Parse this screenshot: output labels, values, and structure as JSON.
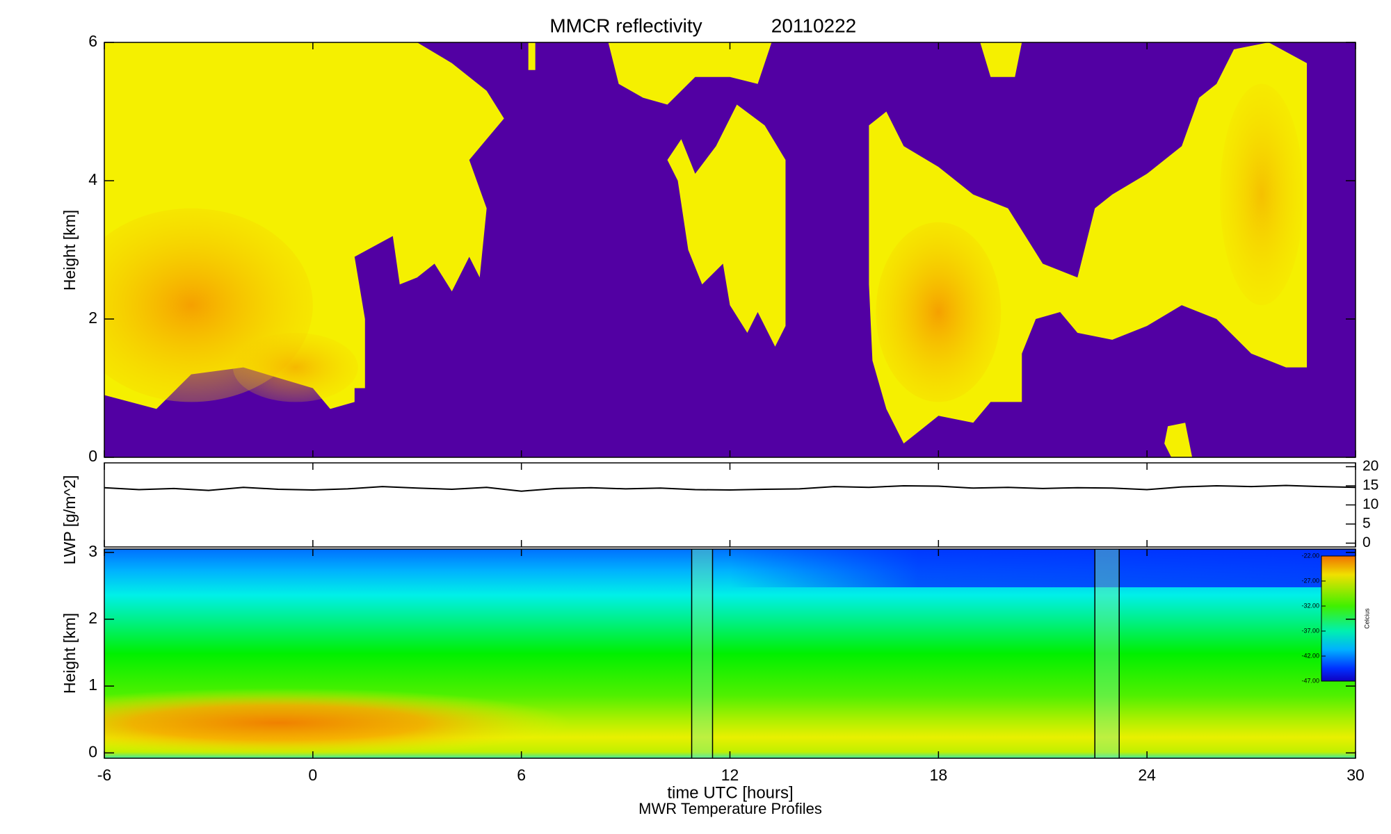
{
  "chart_data": [
    {
      "type": "heatmap",
      "title": "MMCR reflectivity",
      "date": "20110222",
      "ylabel": "Height [km]",
      "ylim": [
        0,
        6
      ],
      "yticks": [
        0,
        2,
        4,
        6
      ],
      "background": "#5200a3"
    },
    {
      "type": "line",
      "ylabel": "LWP [g/m^2]",
      "y2lim": [
        -1,
        21
      ],
      "y2ticks": [
        0,
        5,
        10,
        15,
        20
      ],
      "x": [
        -6,
        -5,
        -4,
        -3,
        -2,
        -1,
        0,
        1,
        2,
        3,
        4,
        5,
        6,
        7,
        8,
        9,
        10,
        11,
        12,
        13,
        14,
        15,
        16,
        17,
        18,
        19,
        20,
        21,
        22,
        23,
        24,
        25,
        26,
        27,
        28,
        29,
        30
      ],
      "series": [
        {
          "color": "#000000",
          "axis": "y2",
          "values": [
            14.5,
            14,
            14.3,
            13.8,
            14.6,
            14.1,
            13.9,
            14.2,
            14.8,
            14.4,
            14.1,
            14.6,
            13.6,
            14.3,
            14.5,
            14.2,
            14.4,
            14.0,
            13.9,
            14.1,
            14.2,
            14.8,
            14.6,
            15.0,
            14.9,
            14.4,
            14.6,
            14.3,
            14.5,
            14.4,
            14.0,
            14.7,
            15.0,
            14.8,
            15.1,
            14.8,
            14.6
          ]
        }
      ]
    },
    {
      "type": "heatmap",
      "title": "MWR Temperature Profiles",
      "xlabel": "time UTC [hours]",
      "ylabel": "Height [km]",
      "xlim": [
        -6,
        30
      ],
      "xticks": [
        -6,
        0,
        6,
        12,
        18,
        24,
        30
      ],
      "ylim": [
        -0.08,
        3.05
      ],
      "yticks": [
        0,
        1,
        2,
        3
      ],
      "data_gaps": [
        [
          10.9,
          11.5
        ],
        [
          22.5,
          23.2
        ]
      ],
      "colorbar": {
        "label": "Celcius",
        "lim": [
          -47,
          -22
        ],
        "ticks": [
          {
            "value": -22,
            "label": "-22.00"
          },
          {
            "value": -27,
            "label": "-27.00"
          },
          {
            "value": -32,
            "label": "-32.00"
          },
          {
            "value": -37,
            "label": "-37.00"
          },
          {
            "value": -42,
            "label": "-42.00"
          },
          {
            "value": -47,
            "label": "-47.00"
          }
        ]
      }
    }
  ]
}
